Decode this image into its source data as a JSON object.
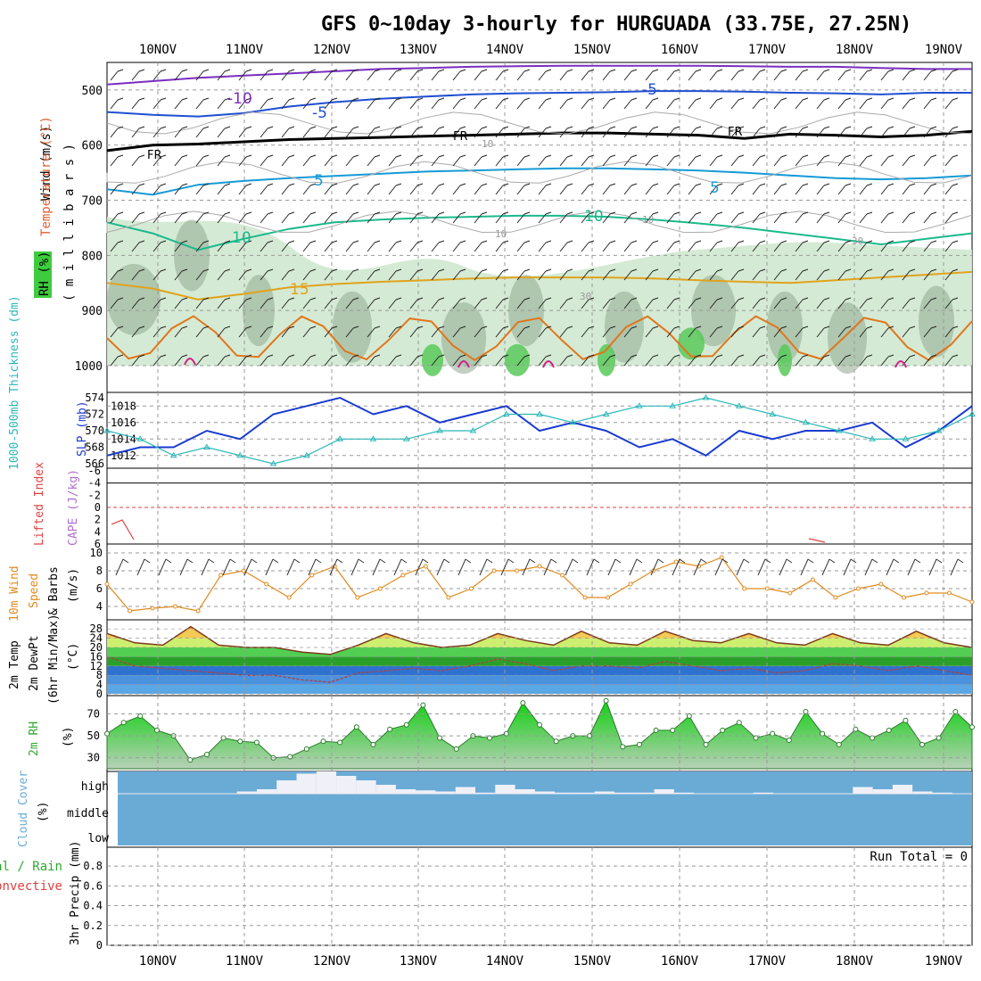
{
  "title": "GFS 0~10day 3-hourly for HURGUADA (33.75E, 27.25N)",
  "date_labels": [
    "10NOV",
    "11NOV",
    "12NOV",
    "13NOV",
    "14NOV",
    "15NOV",
    "16NOV",
    "17NOV",
    "18NOV",
    "19NOV"
  ],
  "colors": {
    "rh_fill": "#cfe8cf",
    "rh_dark": "#8fa78f",
    "rh_green": "#59c95a",
    "temp_neg10": "#7a2ec0",
    "temp_neg5": "#1f4fd1",
    "freezing": "#000000",
    "temp_5": "#159ad6",
    "temp_10": "#1bb98c",
    "temp_15": "#e0a31c",
    "temp_20": "#e0761c",
    "slp": "#1a3ad0",
    "thickness": "#2bb7b7",
    "lifted": "#e04040",
    "wind10": "#e08a1c",
    "temp2m": "#7a3a1a",
    "dewpt": "#b04040",
    "rh2m": "#2fa82f",
    "cloud": "#6aabd6",
    "cloud_gap": "#f0f0f8"
  },
  "panels": {
    "upper_air": {
      "ylabel_wind": "Wind (m/s)",
      "ylabel_temp": "Temperature (°C)",
      "ylabel_rh": "RH (%)",
      "ylabel_pressure": "( m i l l i b a r s )",
      "yticks": [
        "500",
        "600",
        "700",
        "800",
        "900",
        "1000"
      ],
      "contour_labels": [
        "-10",
        "-5",
        "-5",
        "FR",
        "FR",
        "FR",
        "5",
        "5",
        "10",
        "10",
        "15"
      ],
      "rh_labels": [
        "10",
        "10",
        "10",
        "30",
        "30"
      ]
    },
    "slp_thickness": {
      "ylabel_thickness": "1000-500mb Thickness (dm)",
      "ylabel_slp": "SLP (mb)",
      "yticks_thickness": [
        "574",
        "572",
        "570",
        "568",
        "566"
      ],
      "yticks_slp": [
        "1018",
        "1016",
        "1014",
        "1012"
      ]
    },
    "lifted_index": {
      "ylabel_li": "Lifted Index",
      "ylabel_cape": "CAPE (J/kg)",
      "yticks": [
        "-6",
        "-4",
        "-2",
        "0",
        "2",
        "4",
        "6"
      ]
    },
    "wind10m": {
      "ylabel_1": "10m Wind",
      "ylabel_2": "Speed",
      "ylabel_3": "& Barbs",
      "ylabel_unit": "(m/s)",
      "yticks": [
        "10",
        "8",
        "6",
        "4"
      ]
    },
    "temp2m": {
      "ylabel_1": "2m Temp",
      "ylabel_2": "2m DewPt",
      "ylabel_3": "(6hr Min/Max)",
      "ylabel_unit": "(°C)",
      "yticks": [
        "28",
        "24",
        "20",
        "16",
        "12",
        "8",
        "4",
        "0"
      ]
    },
    "rh2m": {
      "ylabel": "2m RH",
      "ylabel_unit": "(%)",
      "yticks": [
        "70",
        "50",
        "30"
      ]
    },
    "cloud": {
      "ylabel": "Cloud Cover",
      "ylabel_unit": "(%)",
      "levels": [
        "high",
        "middle",
        "low"
      ]
    },
    "precip": {
      "ylabel_1": "Total / Rain",
      "ylabel_2": "Convective",
      "ylabel_3": "3hr Precip (mm)",
      "yticks": [
        "0.8",
        "0.6",
        "0.4",
        "0.2",
        "0"
      ],
      "run_total": "Run Total = 0"
    }
  },
  "chart_data": [
    {
      "type": "line",
      "name_panel": "upper_air_temperature",
      "x_unit": "3-hourly steps from 09NOV 12Z",
      "series": [
        {
          "name": "-10",
          "level_mb": [
            490,
            484,
            478,
            474,
            470,
            466,
            462,
            460,
            458,
            457,
            456,
            456,
            456,
            456,
            457,
            458,
            458,
            460,
            462,
            462
          ]
        },
        {
          "name": "-5",
          "level_mb": [
            540,
            545,
            548,
            542,
            530,
            522,
            516,
            512,
            508,
            506,
            505,
            504,
            502,
            502,
            503,
            505,
            506,
            508,
            505,
            505
          ]
        },
        {
          "name": "FR",
          "level_mb": [
            610,
            600,
            598,
            594,
            590,
            588,
            586,
            584,
            582,
            580,
            578,
            578,
            580,
            582,
            588,
            580,
            582,
            585,
            582,
            575
          ]
        },
        {
          "name": "5",
          "level_mb": [
            680,
            690,
            672,
            665,
            660,
            656,
            652,
            648,
            646,
            644,
            642,
            642,
            644,
            646,
            650,
            655,
            660,
            662,
            660,
            655
          ]
        },
        {
          "name": "10",
          "level_mb": [
            740,
            760,
            790,
            770,
            752,
            740,
            735,
            732,
            730,
            728,
            728,
            730,
            735,
            742,
            750,
            760,
            770,
            780,
            770,
            760
          ]
        },
        {
          "name": "15",
          "level_mb": [
            850,
            860,
            880,
            870,
            858,
            852,
            848,
            845,
            842,
            840,
            840,
            840,
            842,
            845,
            848,
            850,
            845,
            840,
            835,
            830
          ]
        }
      ]
    },
    {
      "type": "line",
      "name_panel": "slp_thickness",
      "series": [
        {
          "name": "SLP",
          "values": [
            1012,
            1013,
            1013,
            1015,
            1014,
            1017,
            1018,
            1019,
            1017,
            1018,
            1016,
            1017,
            1018,
            1015,
            1016,
            1015,
            1013,
            1014,
            1012,
            1015,
            1014,
            1015,
            1015,
            1016,
            1013,
            1015,
            1018
          ]
        },
        {
          "name": "Thickness",
          "values": [
            570,
            569,
            567,
            568,
            567,
            566,
            567,
            569,
            569,
            569,
            570,
            570,
            572,
            572,
            571,
            572,
            573,
            573,
            574,
            573,
            572,
            571,
            570,
            569,
            569,
            570,
            572
          ]
        }
      ]
    },
    {
      "type": "line",
      "name_panel": "wind10m_speed",
      "values": [
        6.5,
        3.5,
        3.8,
        4.0,
        3.5,
        7.5,
        8.0,
        6.5,
        5.0,
        7.5,
        8.5,
        5.0,
        6.0,
        7.5,
        8.5,
        5.0,
        6.0,
        8.0,
        8.0,
        8.5,
        7.5,
        5.0,
        5.0,
        6.5,
        8.0,
        9.0,
        8.5,
        9.5,
        6.0,
        6.0,
        5.5,
        7.0,
        5.0,
        6.0,
        6.5,
        5.0,
        5.5,
        5.5,
        4.5
      ]
    },
    {
      "type": "area",
      "name_panel": "temp2m",
      "series": [
        {
          "name": "Temp",
          "values": [
            26,
            22,
            21,
            29,
            21,
            20,
            20,
            18,
            17,
            21,
            26,
            22,
            20,
            21,
            26,
            23,
            21,
            27,
            22,
            21,
            27,
            23,
            22,
            26,
            22,
            21,
            26,
            22,
            21,
            27,
            22,
            20
          ]
        },
        {
          "name": "DewPt",
          "values": [
            16,
            12,
            11,
            10,
            9,
            8,
            8,
            6,
            5,
            9,
            10,
            11,
            10,
            12,
            15,
            13,
            10,
            12,
            12,
            11,
            14,
            12,
            10,
            11,
            9,
            10,
            13,
            12,
            10,
            12,
            10,
            8
          ]
        }
      ]
    },
    {
      "type": "area",
      "name_panel": "rh2m",
      "values": [
        52,
        62,
        68,
        55,
        50,
        28,
        33,
        48,
        45,
        44,
        30,
        31,
        38,
        45,
        44,
        58,
        42,
        56,
        60,
        78,
        48,
        38,
        50,
        48,
        52,
        80,
        60,
        45,
        50,
        50,
        82,
        40,
        42,
        55,
        55,
        68,
        42,
        55,
        62,
        48,
        52,
        46,
        72,
        52,
        42,
        56,
        48,
        55,
        64,
        42,
        48,
        72,
        58
      ]
    },
    {
      "type": "bar",
      "name_panel": "cloud_cover_high",
      "values": [
        0,
        0,
        0,
        0,
        0,
        0,
        10,
        20,
        60,
        90,
        100,
        80,
        60,
        40,
        20,
        15,
        10,
        30,
        5,
        40,
        20,
        10,
        5,
        5,
        10,
        5,
        5,
        20,
        5,
        0,
        0,
        0,
        5,
        0,
        0,
        0,
        0,
        30,
        20,
        40,
        10,
        5,
        0
      ]
    }
  ]
}
